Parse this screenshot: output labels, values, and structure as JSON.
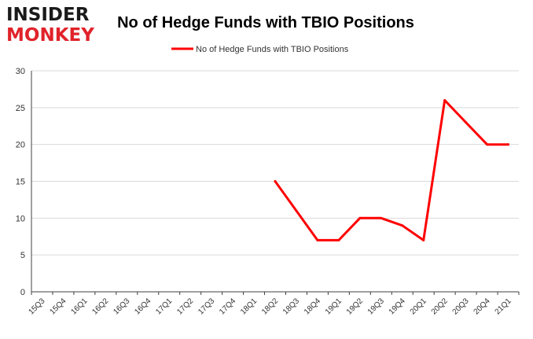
{
  "logo": {
    "line1": "INSIDER",
    "line2": "MONKEY"
  },
  "colors": {
    "series": "#ff0000",
    "grid": "#d9d9d9",
    "axis": "#404040",
    "logo_dark": "#1a1a1a",
    "logo_red": "#e0232a"
  },
  "chart_data": {
    "type": "line",
    "title": "No of Hedge Funds with TBIO Positions",
    "xlabel": "",
    "ylabel": "",
    "ylim": [
      0,
      30
    ],
    "yticks": [
      0,
      5,
      10,
      15,
      20,
      25,
      30
    ],
    "grid": true,
    "legend_position": "top-center",
    "categories": [
      "15Q3",
      "15Q4",
      "16Q1",
      "16Q2",
      "16Q3",
      "16Q4",
      "17Q1",
      "17Q2",
      "17Q3",
      "17Q4",
      "18Q1",
      "18Q2",
      "18Q3",
      "18Q4",
      "19Q1",
      "19Q2",
      "19Q3",
      "19Q4",
      "20Q1",
      "20Q2",
      "20Q3",
      "20Q4",
      "21Q1"
    ],
    "series": [
      {
        "name": "No of Hedge Funds with TBIO Positions",
        "values": [
          null,
          null,
          null,
          null,
          null,
          null,
          null,
          null,
          null,
          null,
          null,
          15,
          11,
          7,
          7,
          10,
          10,
          9,
          7,
          26,
          23,
          20,
          20
        ]
      }
    ]
  }
}
